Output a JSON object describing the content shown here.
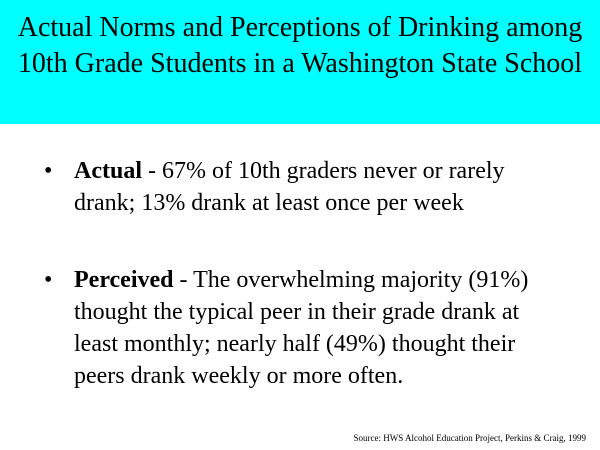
{
  "slide": {
    "title": "Actual Norms and Perceptions of Drinking among 10th Grade Students in a Washington State School",
    "colors": {
      "title_background": "#00ffff",
      "body_background": "#ffffff",
      "text": "#000000"
    },
    "bullets": [
      {
        "symbol": "•",
        "term": "Actual",
        "text": " - 67% of 10th graders never or rarely drank;  13% drank at least once per week"
      },
      {
        "symbol": "•",
        "term": "Perceived",
        "text": " - The overwhelming majority (91%) thought the typical peer in their grade drank at least monthly;  nearly half (49%) thought their peers drank weekly or more often."
      }
    ],
    "source": "Source:  HWS Alcohol Education Project, Perkins & Craig, 1999"
  }
}
